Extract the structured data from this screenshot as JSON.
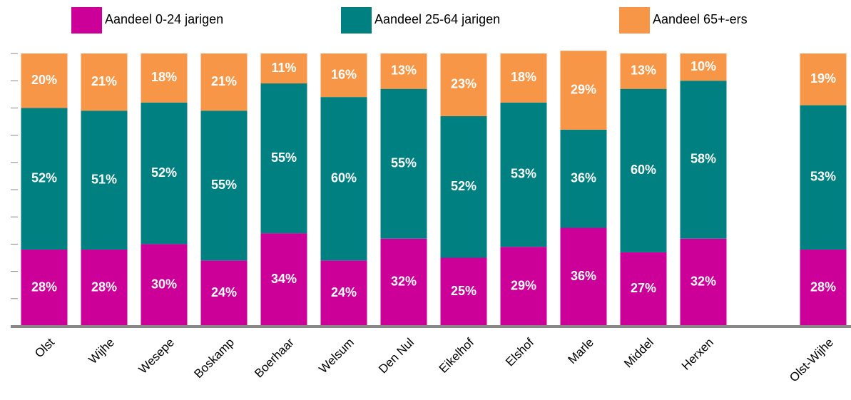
{
  "chart_data": {
    "type": "stacked_bar",
    "categories": [
      "Olst",
      "Wijhe",
      "Wesepe",
      "Boskamp",
      "Boerhaar",
      "Welsum",
      "Den Nul",
      "Eikelhof",
      "Elshof",
      "Marle",
      "Middel",
      "Herxen",
      null,
      "Olst-Wijhe"
    ],
    "series": [
      {
        "name": "Aandeel 0-24 jarigen",
        "color": "#cc0099",
        "values": [
          28,
          28,
          30,
          24,
          34,
          24,
          32,
          25,
          29,
          36,
          27,
          32,
          null,
          28
        ],
        "value_labels": [
          "28%",
          "28%",
          "30%",
          "24%",
          "34%",
          "24%",
          "32%",
          "25%",
          "29%",
          "36%",
          "27%",
          "32%",
          null,
          "28%"
        ]
      },
      {
        "name": "Aandeel 25-64 jarigen",
        "color": "#008080",
        "values": [
          52,
          51,
          52,
          55,
          55,
          60,
          55,
          52,
          53,
          36,
          60,
          58,
          null,
          53
        ],
        "value_labels": [
          "52%",
          "51%",
          "52%",
          "55%",
          "55%",
          "60%",
          "55%",
          "52%",
          "53%",
          "36%",
          "60%",
          "58%",
          null,
          "53%"
        ]
      },
      {
        "name": "Aandeel 65+-ers",
        "color": "#f79646",
        "values": [
          20,
          21,
          18,
          21,
          11,
          16,
          13,
          23,
          18,
          29,
          13,
          10,
          null,
          19
        ],
        "value_labels": [
          "20%",
          "21%",
          "18%",
          "21%",
          "11%",
          "16%",
          "13%",
          "23%",
          "18%",
          "29%",
          "13%",
          "10%",
          null,
          "19%"
        ]
      }
    ],
    "ylim": [
      0,
      100
    ],
    "yticks": [
      0,
      10,
      20,
      30,
      40,
      50,
      60,
      70,
      80,
      90,
      100
    ]
  }
}
